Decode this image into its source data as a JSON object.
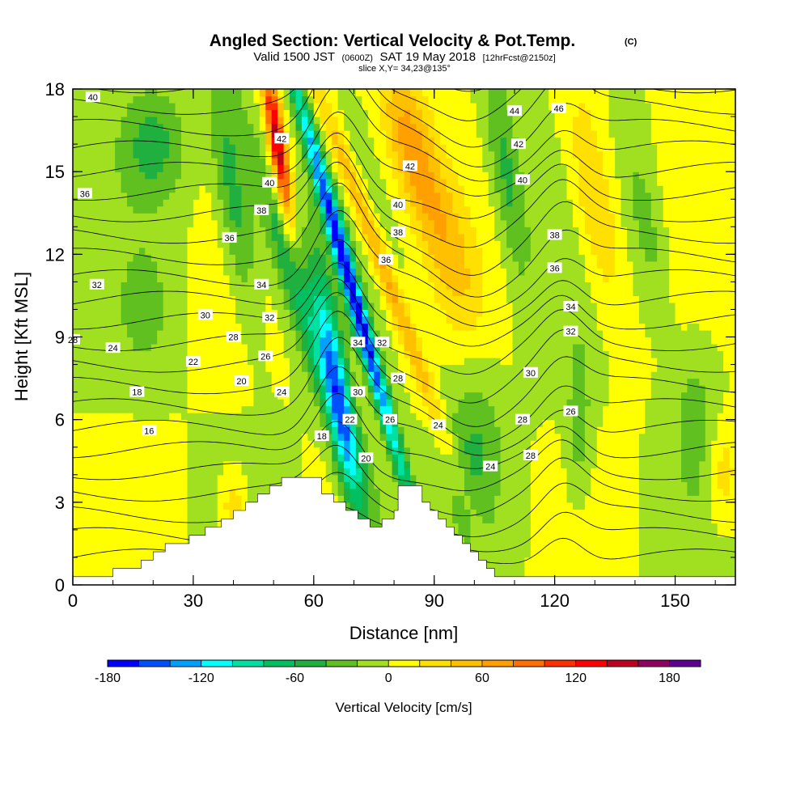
{
  "chart_data": {
    "type": "heatmap",
    "title": "Angled Section: Vertical Velocity & Pot.Temp.",
    "title_unit": "(C)",
    "subtitle": {
      "valid": "Valid 1500 JST",
      "utc": "(0600Z)",
      "date": "SAT 19 May 2018",
      "forecast": "[12hrFcst@2150z]"
    },
    "slice": "slice X,Y= 34,23@135°",
    "xlabel": "Distance [nm]",
    "ylabel": "Height [Kft MSL]",
    "xlim": [
      0,
      165
    ],
    "ylim": [
      0,
      18
    ],
    "x_ticks": [
      0,
      30,
      60,
      90,
      120,
      150
    ],
    "y_ticks": [
      0,
      3,
      6,
      9,
      12,
      15,
      18
    ],
    "colorbar": {
      "label": "Vertical Velocity [cm/s]",
      "min": -180,
      "max": 200,
      "step": 20,
      "tick_values": [
        -180,
        -120,
        -60,
        0,
        60,
        120,
        180
      ],
      "colors": [
        "#0000ff",
        "#0050ff",
        "#00a0ff",
        "#00ffff",
        "#00e0a0",
        "#00c060",
        "#20b040",
        "#60c020",
        "#a0e020",
        "#ffff00",
        "#ffe000",
        "#ffc000",
        "#ffa000",
        "#ff7000",
        "#ff3000",
        "#ff0000",
        "#c00020",
        "#900060",
        "#600090"
      ]
    },
    "terrain": [
      [
        0,
        0.3
      ],
      [
        10,
        0.3
      ],
      [
        10,
        0.6
      ],
      [
        17,
        0.6
      ],
      [
        17,
        0.9
      ],
      [
        20,
        0.9
      ],
      [
        20,
        1.2
      ],
      [
        23,
        1.2
      ],
      [
        23,
        1.5
      ],
      [
        29,
        1.5
      ],
      [
        29,
        1.8
      ],
      [
        33,
        1.8
      ],
      [
        33,
        2.1
      ],
      [
        37,
        2.1
      ],
      [
        37,
        2.4
      ],
      [
        40,
        2.4
      ],
      [
        40,
        2.7
      ],
      [
        43,
        2.7
      ],
      [
        43,
        3.0
      ],
      [
        46,
        3.0
      ],
      [
        46,
        3.3
      ],
      [
        49,
        3.3
      ],
      [
        49,
        3.6
      ],
      [
        52,
        3.6
      ],
      [
        52,
        3.9
      ],
      [
        62,
        3.9
      ],
      [
        62,
        3.3
      ],
      [
        65,
        3.3
      ],
      [
        65,
        3.0
      ],
      [
        68,
        3.0
      ],
      [
        68,
        2.7
      ],
      [
        71,
        2.7
      ],
      [
        71,
        2.4
      ],
      [
        74,
        2.4
      ],
      [
        74,
        2.1
      ],
      [
        77,
        2.1
      ],
      [
        77,
        2.4
      ],
      [
        80,
        2.4
      ],
      [
        80,
        2.7
      ],
      [
        81,
        2.7
      ],
      [
        81,
        3.6
      ],
      [
        87,
        3.6
      ],
      [
        87,
        3.0
      ],
      [
        89,
        3.0
      ],
      [
        89,
        2.7
      ],
      [
        91,
        2.7
      ],
      [
        91,
        2.4
      ],
      [
        93,
        2.4
      ],
      [
        93,
        2.1
      ],
      [
        95,
        2.1
      ],
      [
        95,
        1.8
      ],
      [
        97,
        1.8
      ],
      [
        97,
        1.5
      ],
      [
        99,
        1.5
      ],
      [
        99,
        1.2
      ],
      [
        101,
        1.2
      ],
      [
        101,
        0.9
      ],
      [
        103,
        0.9
      ],
      [
        103,
        0.6
      ],
      [
        105,
        0.6
      ],
      [
        105,
        0.3
      ],
      [
        165,
        0.3
      ]
    ],
    "velocity_features": [
      {
        "x": 69,
        "y": 11,
        "sx": 2.2,
        "sy": 8,
        "tilt": -0.38,
        "v": -175
      },
      {
        "x": 66,
        "y": 7,
        "sx": 3.0,
        "sy": 5,
        "tilt": -0.2,
        "v": -100
      },
      {
        "x": 60,
        "y": 9,
        "sx": 4.5,
        "sy": 8,
        "tilt": -0.45,
        "v": -70
      },
      {
        "x": 51,
        "y": 16,
        "sx": 2.0,
        "sy": 3,
        "tilt": -0.2,
        "v": 150
      },
      {
        "x": 76,
        "y": 12,
        "sx": 2.5,
        "sy": 7,
        "tilt": -0.5,
        "v": 70
      },
      {
        "x": 84,
        "y": 16,
        "sx": 6,
        "sy": 3,
        "tilt": -0.3,
        "v": 70
      },
      {
        "x": 94,
        "y": 12,
        "sx": 6,
        "sy": 3,
        "tilt": -0.3,
        "v": 40
      },
      {
        "x": 108,
        "y": 15,
        "sx": 4,
        "sy": 4,
        "tilt": -0.2,
        "v": -50
      },
      {
        "x": 130,
        "y": 14,
        "sx": 5,
        "sy": 4,
        "tilt": -0.2,
        "v": 50
      },
      {
        "x": 126,
        "y": 6,
        "sx": 3,
        "sy": 3,
        "tilt": 0,
        "v": -35
      },
      {
        "x": 155,
        "y": 6,
        "sx": 6,
        "sy": 3,
        "tilt": 0,
        "v": -30
      },
      {
        "x": 162,
        "y": 4,
        "sx": 4,
        "sy": 2,
        "tilt": 0,
        "v": 35
      },
      {
        "x": 100,
        "y": 5,
        "sx": 7,
        "sy": 3,
        "tilt": 0,
        "v": -40
      },
      {
        "x": 18,
        "y": 10,
        "sx": 6,
        "sy": 2,
        "tilt": 0,
        "v": -25
      },
      {
        "x": 20,
        "y": 16,
        "sx": 8,
        "sy": 2,
        "tilt": 0,
        "v": -45
      },
      {
        "x": 40,
        "y": 14,
        "sx": 4,
        "sy": 4,
        "tilt": -0.2,
        "v": -55
      },
      {
        "x": 40,
        "y": 2.8,
        "sx": 3,
        "sy": 1.2,
        "tilt": 0,
        "v": 40
      },
      {
        "x": 143,
        "y": 13,
        "sx": 4,
        "sy": 3,
        "tilt": -0.2,
        "v": -30
      }
    ],
    "contour_labels": [
      {
        "text": "40",
        "x": 5,
        "y": 17.7
      },
      {
        "text": "42",
        "x": 52,
        "y": 16.2
      },
      {
        "text": "40",
        "x": 49,
        "y": 14.6
      },
      {
        "text": "38",
        "x": 47,
        "y": 13.6
      },
      {
        "text": "36",
        "x": 39,
        "y": 12.6
      },
      {
        "text": "36",
        "x": 3,
        "y": 14.2
      },
      {
        "text": "32",
        "x": 6,
        "y": 10.9
      },
      {
        "text": "30",
        "x": 33,
        "y": 9.8
      },
      {
        "text": "28",
        "x": 40,
        "y": 9.0
      },
      {
        "text": "28",
        "x": 0,
        "y": 8.9
      },
      {
        "text": "26",
        "x": 48,
        "y": 8.3
      },
      {
        "text": "24",
        "x": 10,
        "y": 8.6
      },
      {
        "text": "22",
        "x": 30,
        "y": 8.1
      },
      {
        "text": "20",
        "x": 42,
        "y": 7.4
      },
      {
        "text": "18",
        "x": 16,
        "y": 7.0
      },
      {
        "text": "16",
        "x": 19,
        "y": 5.6
      },
      {
        "text": "34",
        "x": 47,
        "y": 10.9
      },
      {
        "text": "32",
        "x": 49,
        "y": 9.7
      },
      {
        "text": "24",
        "x": 52,
        "y": 7.0
      },
      {
        "text": "18",
        "x": 62,
        "y": 5.4
      },
      {
        "text": "22",
        "x": 69,
        "y": 6.0
      },
      {
        "text": "20",
        "x": 73,
        "y": 4.6
      },
      {
        "text": "30",
        "x": 71,
        "y": 7.0
      },
      {
        "text": "34",
        "x": 71,
        "y": 8.8
      },
      {
        "text": "32",
        "x": 77,
        "y": 8.8
      },
      {
        "text": "28",
        "x": 81,
        "y": 7.5
      },
      {
        "text": "26",
        "x": 79,
        "y": 6.0
      },
      {
        "text": "36",
        "x": 78,
        "y": 11.8
      },
      {
        "text": "38",
        "x": 81,
        "y": 12.8
      },
      {
        "text": "40",
        "x": 81,
        "y": 13.8
      },
      {
        "text": "42",
        "x": 84,
        "y": 15.2
      },
      {
        "text": "44",
        "x": 110,
        "y": 17.2
      },
      {
        "text": "46",
        "x": 121,
        "y": 17.3
      },
      {
        "text": "42",
        "x": 111,
        "y": 16.0
      },
      {
        "text": "40",
        "x": 112,
        "y": 14.7
      },
      {
        "text": "38",
        "x": 120,
        "y": 12.7
      },
      {
        "text": "36",
        "x": 120,
        "y": 11.5
      },
      {
        "text": "34",
        "x": 124,
        "y": 10.1
      },
      {
        "text": "32",
        "x": 124,
        "y": 9.2
      },
      {
        "text": "30",
        "x": 114,
        "y": 7.7
      },
      {
        "text": "28",
        "x": 112,
        "y": 6.0
      },
      {
        "text": "26",
        "x": 124,
        "y": 6.3
      },
      {
        "text": "24",
        "x": 91,
        "y": 5.8
      },
      {
        "text": "24",
        "x": 104,
        "y": 4.3
      },
      {
        "text": "28",
        "x": 114,
        "y": 4.7
      }
    ]
  }
}
